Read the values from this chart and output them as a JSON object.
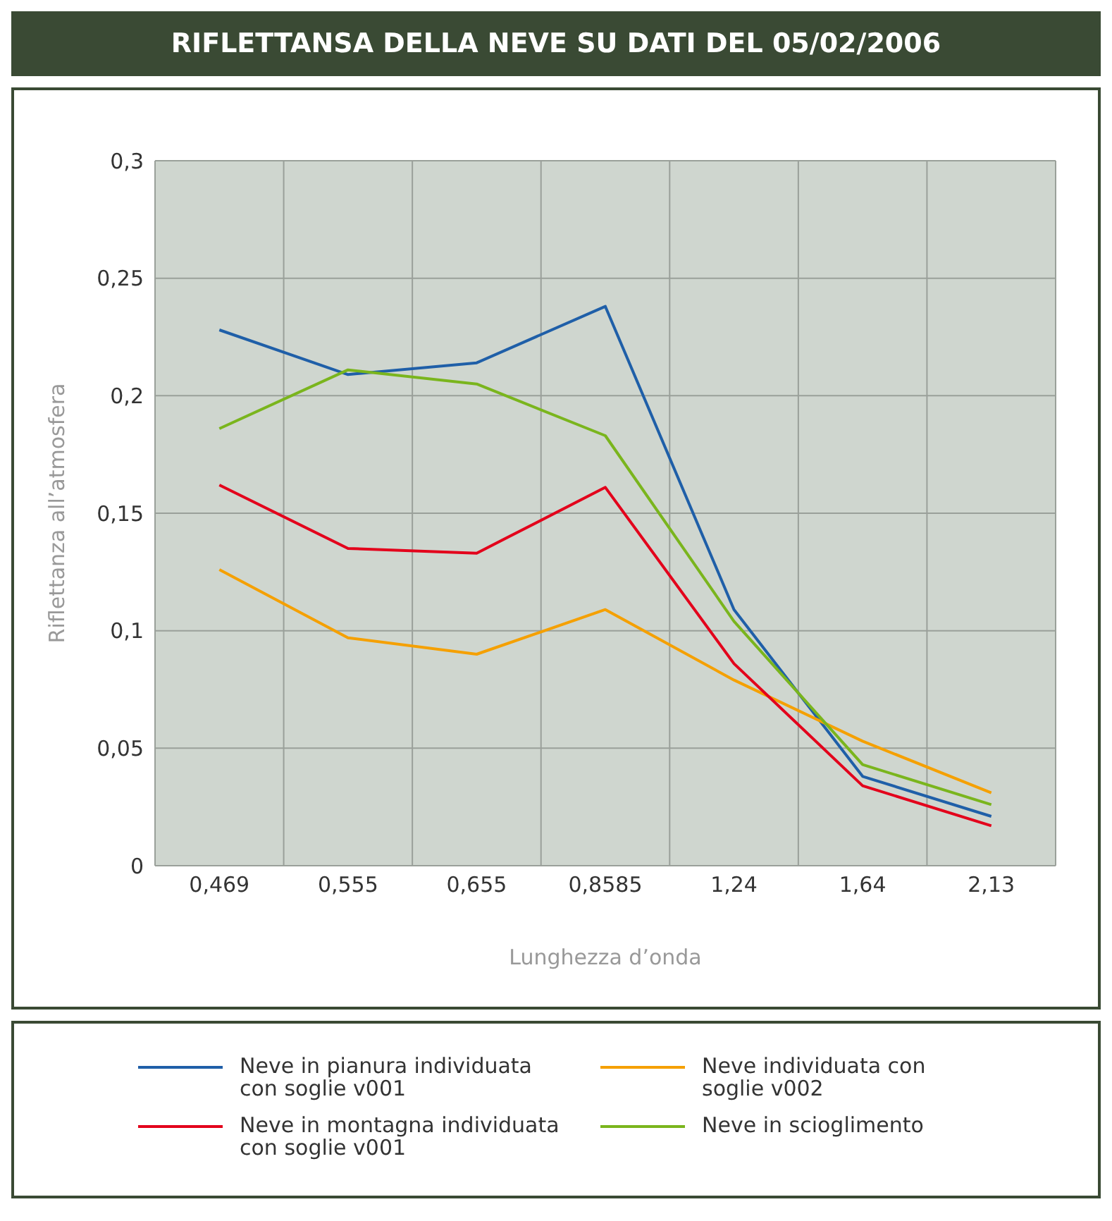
{
  "chart_data": {
    "type": "line",
    "title": "RIFLETTANSA DELLA NEVE SU DATI DEL 05/02/2006",
    "xlabel": "Lunghezza d’onda",
    "ylabel": "Riflettanza all’atmosfera",
    "categories": [
      "0,469",
      "0,555",
      "0,655",
      "0,8585",
      "1,24",
      "1,64",
      "2,13"
    ],
    "ylim": [
      0,
      0.3
    ],
    "yticks": [
      {
        "value": 0,
        "label": "0"
      },
      {
        "value": 0.05,
        "label": "0,05"
      },
      {
        "value": 0.1,
        "label": "0,1"
      },
      {
        "value": 0.15,
        "label": "0,15"
      },
      {
        "value": 0.2,
        "label": "0,2"
      },
      {
        "value": 0.25,
        "label": "0,25"
      },
      {
        "value": 0.3,
        "label": "0,3"
      }
    ],
    "grid": true,
    "legend": "bottom",
    "marker": "none",
    "line_style": "solid",
    "series": [
      {
        "name": "Neve in pianura individuata con soglie v001",
        "color": "#1f5fa8",
        "values": [
          0.228,
          0.209,
          0.214,
          0.238,
          0.109,
          0.038,
          0.021
        ]
      },
      {
        "name": "Neve individuata con soglie v002",
        "color": "#f5a000",
        "values": [
          0.126,
          0.097,
          0.09,
          0.109,
          0.079,
          0.053,
          0.031
        ]
      },
      {
        "name": "Neve in montagna individuata con soglie v001",
        "color": "#e3001b",
        "values": [
          0.162,
          0.135,
          0.133,
          0.161,
          0.086,
          0.034,
          0.017
        ]
      },
      {
        "name": "Neve in scioglimento",
        "color": "#7ab51d",
        "values": [
          0.186,
          0.211,
          0.205,
          0.183,
          0.104,
          0.043,
          0.026
        ]
      }
    ]
  }
}
